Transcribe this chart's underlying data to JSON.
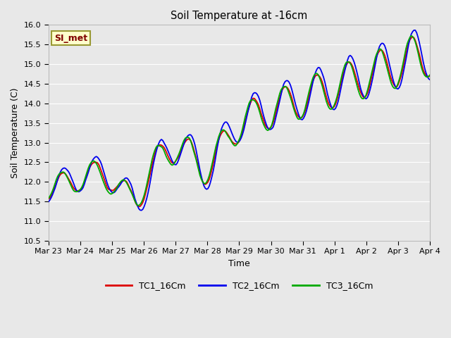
{
  "title": "Soil Temperature at -16cm",
  "xlabel": "Time",
  "ylabel": "Soil Temperature (C)",
  "ylim": [
    10.5,
    16.0
  ],
  "yticks": [
    10.5,
    11.0,
    11.5,
    12.0,
    12.5,
    13.0,
    13.5,
    14.0,
    14.5,
    15.0,
    15.5,
    16.0
  ],
  "x_tick_labels": [
    "Mar 23",
    "Mar 24",
    "Mar 25",
    "Mar 26",
    "Mar 27",
    "Mar 28",
    "Mar 29",
    "Mar 30",
    "Mar 31",
    "Apr 1",
    "Apr 2",
    "Apr 3",
    "Apr 4"
  ],
  "annotation_text": "SI_met",
  "annotation_box_color": "#ffffcc",
  "annotation_box_edgecolor": "#999933",
  "annotation_text_color": "#800000",
  "series_colors": [
    "#dd0000",
    "#0000ee",
    "#00aa00"
  ],
  "series_labels": [
    "TC1_16Cm",
    "TC2_16Cm",
    "TC3_16Cm"
  ],
  "background_color": "#e8e8e8",
  "plot_bg_color": "#e8e8e8",
  "grid_color": "#ffffff",
  "line_width": 1.3
}
